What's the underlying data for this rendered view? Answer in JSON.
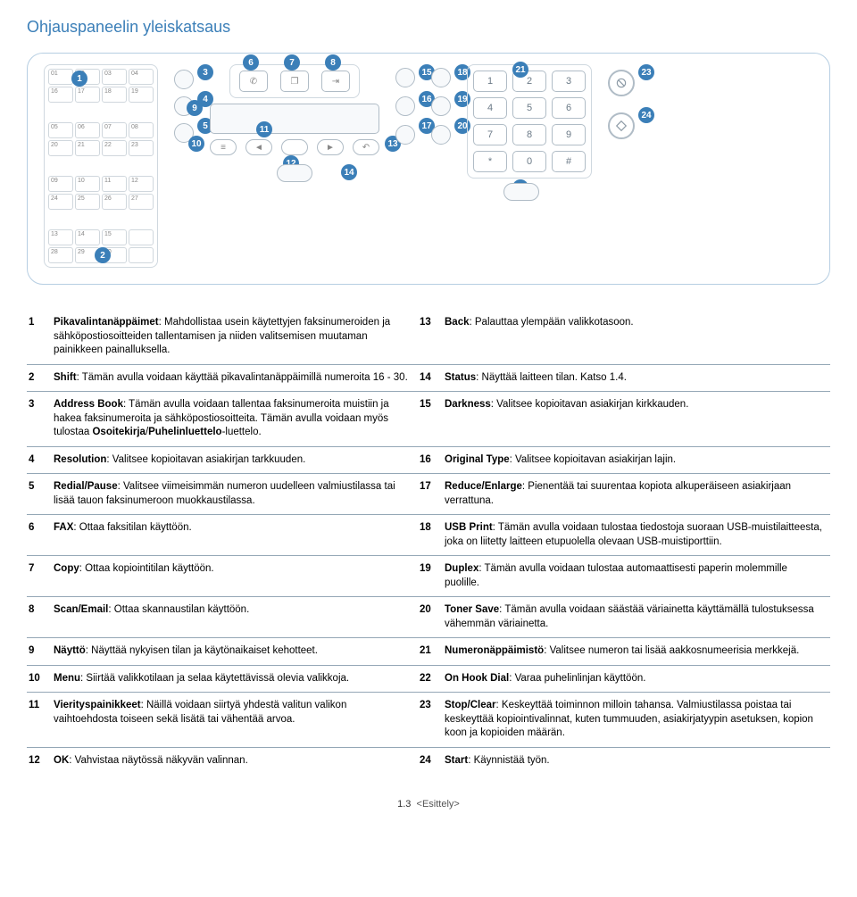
{
  "title": "Ohjauspaneelin yleiskatsaus",
  "panel": {
    "speed_dial_cells": [
      "01",
      "02",
      "03",
      "04",
      "16",
      "17",
      "18",
      "19",
      "05",
      "06",
      "07",
      "08",
      "20",
      "21",
      "22",
      "23",
      "09",
      "10",
      "11",
      "12",
      "24",
      "25",
      "26",
      "27",
      "13",
      "14",
      "15",
      "",
      "28",
      "29",
      "30",
      ""
    ],
    "keypad_keys": [
      "1",
      "2",
      "3",
      "4",
      "5",
      "6",
      "7",
      "8",
      "9",
      "*",
      "0",
      "#"
    ],
    "callouts": [
      "1",
      "2",
      "3",
      "4",
      "5",
      "6",
      "7",
      "8",
      "9",
      "10",
      "11",
      "12",
      "13",
      "14",
      "15",
      "16",
      "17",
      "18",
      "19",
      "20",
      "21",
      "22",
      "23",
      "24"
    ]
  },
  "rows": [
    {
      "ln": "1",
      "lt": "<b>Pikavalintanäppäimet</b>: Mahdollistaa usein käytettyjen faksinumeroiden ja sähköpostiosoitteiden tallentamisen ja niiden valitsemisen muutaman painikkeen painalluksella.",
      "rn": "13",
      "rt": "<b>Back</b>: Palauttaa ylempään valikkotasoon."
    },
    {
      "ln": "2",
      "lt": "<b>Shift</b>: Tämän avulla voidaan käyttää pikavalintanäppäimillä numeroita 16 - 30.",
      "rn": "14",
      "rt": "<b>Status</b>: Näyttää laitteen tilan. Katso 1.4."
    },
    {
      "ln": "3",
      "lt": "<b>Address Book</b>: Tämän avulla voidaan tallentaa faksinumeroita muistiin ja hakea faksinumeroita ja sähköpostiosoitteita. Tämän avulla voidaan myös tulostaa <b>Osoitekirja</b>/<b>Puhelinluettelo</b>-luettelo.",
      "rn": "15",
      "rt": "<b>Darkness</b>: Valitsee kopioitavan asiakirjan kirkkauden."
    },
    {
      "ln": "4",
      "lt": "<b>Resolution</b>: Valitsee kopioitavan asiakirjan tarkkuuden.",
      "rn": "16",
      "rt": "<b>Original Type</b>: Valitsee kopioitavan asiakirjan lajin."
    },
    {
      "ln": "5",
      "lt": "<b>Redial/Pause</b>: Valitsee viimeisimmän numeron uudelleen valmiustilassa tai lisää tauon faksinumeroon muokkaustilassa.",
      "rn": "17",
      "rt": "<b>Reduce/Enlarge</b>: Pienentää tai suurentaa kopiota alkuperäiseen asiakirjaan verrattuna."
    },
    {
      "ln": "6",
      "lt": "<b>FAX</b>: Ottaa faksitilan käyttöön.",
      "rn": "18",
      "rt": "<b>USB Print</b>: Tämän avulla voidaan tulostaa tiedostoja suoraan USB-muistilaitteesta, joka on liitetty laitteen etupuolella olevaan USB-muistiporttiin."
    },
    {
      "ln": "7",
      "lt": "<b>Copy</b>: Ottaa kopiointitilan käyttöön.",
      "rn": "19",
      "rt": "<b>Duplex</b>: Tämän avulla voidaan tulostaa automaattisesti paperin molemmille puolille."
    },
    {
      "ln": "8",
      "lt": "<b>Scan/Email</b>: Ottaa skannaustilan käyttöön.",
      "rn": "20",
      "rt": "<b>Toner Save</b>: Tämän avulla voidaan säästää väriainetta käyttämällä tulostuksessa vähemmän väriainetta."
    },
    {
      "ln": "9",
      "lt": "<b>Näyttö</b>: Näyttää nykyisen tilan ja käytönaikaiset kehotteet.",
      "rn": "21",
      "rt": "<b>Numeronäppäimistö</b>: Valitsee numeron tai lisää aakkosnumeerisia merkkejä."
    },
    {
      "ln": "10",
      "lt": "<b>Menu</b>: Siirtää valikkotilaan ja selaa käytettävissä olevia valikkoja.",
      "rn": "22",
      "rt": "<b>On Hook Dial</b>: Varaa puhelinlinjan käyttöön."
    },
    {
      "ln": "11",
      "lt": "<b>Vierityspainikkeet</b>: Näillä voidaan siirtyä yhdestä valitun valikon vaihtoehdosta toiseen sekä lisätä tai vähentää arvoa.",
      "rn": "23",
      "rt": "<b>Stop/Clear</b>: Keskeyttää toiminnon milloin tahansa. Valmiustilassa poistaa tai keskeyttää kopiointivalinnat, kuten tummuuden, asiakirjatyypin asetuksen, kopion koon ja kopioiden määrän."
    },
    {
      "ln": "12",
      "lt": "<b>OK</b>: Vahvistaa näytössä näkyvän valinnan.",
      "rn": "24",
      "rt": "<b>Start</b>: Käynnistää työn."
    }
  ],
  "footer": {
    "page": "1.3",
    "section": "<Esittely>"
  }
}
